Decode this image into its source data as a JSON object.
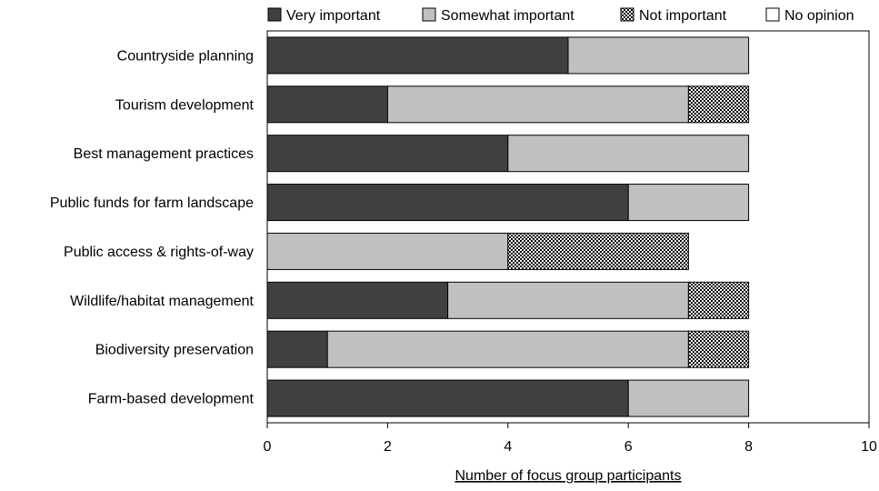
{
  "chart_data": {
    "type": "bar",
    "orientation": "horizontal",
    "stacked": true,
    "categories": [
      "Countryside planning",
      "Tourism development",
      "Best management practices",
      "Public funds for farm landscape",
      "Public access & rights-of-way",
      "Wildlife/habitat management",
      "Biodiversity preservation",
      "Farm-based development"
    ],
    "series": [
      {
        "name": "Very important",
        "values": [
          5,
          2,
          4,
          6,
          0,
          3,
          1,
          6
        ],
        "color": "#404040",
        "pattern": "solid"
      },
      {
        "name": "Somewhat important",
        "values": [
          3,
          5,
          4,
          2,
          4,
          4,
          6,
          2
        ],
        "color": "#c0c0c0",
        "pattern": "solid"
      },
      {
        "name": "Not important",
        "values": [
          0,
          1,
          0,
          0,
          3,
          1,
          1,
          0
        ],
        "color": "#000000",
        "pattern": "checker"
      },
      {
        "name": "No opinion",
        "values": [
          0,
          0,
          0,
          0,
          0,
          0,
          0,
          0
        ],
        "color": "#ffffff",
        "pattern": "solid"
      }
    ],
    "xlabel": "Number of focus group participants",
    "ylabel": "",
    "xlim": [
      0,
      10
    ],
    "xticks": [
      "0",
      "2",
      "4",
      "6",
      "8",
      "10"
    ],
    "legend_position": "top",
    "grid": false
  }
}
